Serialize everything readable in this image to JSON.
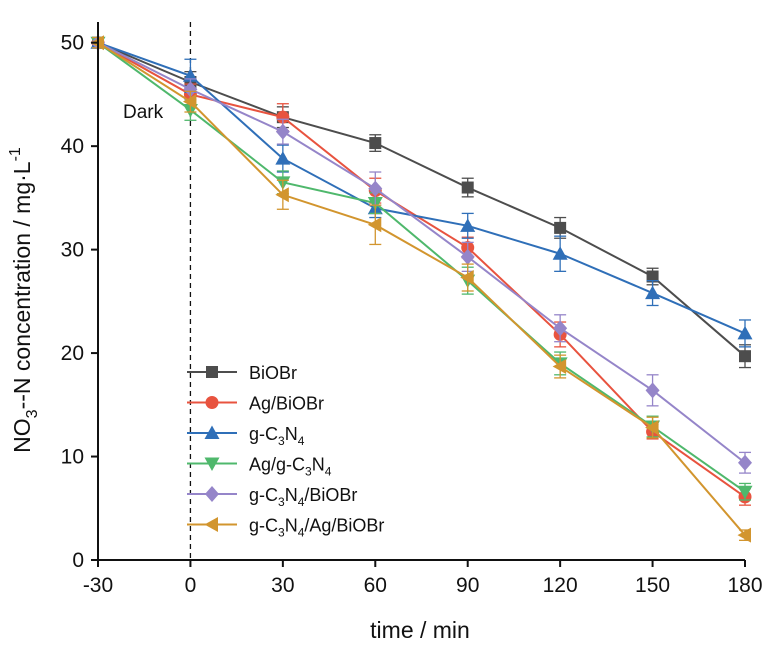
{
  "chart_data": {
    "type": "line",
    "xlabel": "time / min",
    "ylabel": "NO3--N concentration / mg·L-1",
    "xlim": [
      -30,
      180
    ],
    "ylim": [
      0,
      52
    ],
    "x_ticks": [
      -30,
      0,
      30,
      60,
      90,
      120,
      150,
      180
    ],
    "y_ticks": [
      0,
      10,
      20,
      30,
      40,
      50
    ],
    "x": [
      -30,
      0,
      30,
      60,
      90,
      120,
      150,
      180
    ],
    "annotation": {
      "text": "Dark",
      "at_x": 0
    },
    "legend_position": "bottom-left",
    "series": [
      {
        "name": "BiOBr",
        "color": "#4d4d4d",
        "marker": "square",
        "values": [
          50,
          46.2,
          42.8,
          40.3,
          36.0,
          32.1,
          27.4,
          19.7
        ],
        "errors": [
          0.5,
          1.0,
          1.0,
          0.8,
          0.9,
          1.0,
          0.8,
          1.1
        ]
      },
      {
        "name": "Ag/BiOBr",
        "color": "#e8533f",
        "marker": "circle",
        "values": [
          50,
          45.0,
          42.8,
          35.7,
          30.2,
          21.8,
          12.4,
          6.1
        ],
        "errors": [
          0.5,
          1.0,
          1.3,
          1.2,
          1.0,
          1.2,
          0.7,
          0.8
        ]
      },
      {
        "name": "g-C3N4",
        "color": "#2f6fb8",
        "marker": "triangle-up",
        "values": [
          50,
          46.8,
          38.8,
          34.0,
          32.3,
          29.6,
          25.8,
          21.9
        ],
        "errors": [
          0.5,
          1.6,
          1.3,
          0.9,
          1.2,
          1.7,
          1.2,
          1.3
        ]
      },
      {
        "name": "Ag/g-C3N4",
        "color": "#4fb86c",
        "marker": "triangle-down",
        "values": [
          50,
          43.5,
          36.5,
          34.5,
          27.0,
          19.0,
          12.9,
          6.6
        ],
        "errors": [
          0.5,
          1.0,
          1.1,
          1.0,
          1.3,
          1.1,
          1.0,
          0.8
        ]
      },
      {
        "name": "g-C3N4/BiOBr",
        "color": "#9585c9",
        "marker": "diamond",
        "values": [
          50,
          45.5,
          41.4,
          35.9,
          29.3,
          22.4,
          16.4,
          9.4
        ],
        "errors": [
          0.5,
          1.0,
          1.2,
          1.6,
          1.4,
          1.3,
          1.5,
          1.0
        ]
      },
      {
        "name": "g-C3N4/Ag/BiOBr",
        "color": "#d2952e",
        "marker": "triangle-left",
        "values": [
          50,
          44.3,
          35.3,
          32.4,
          27.3,
          18.7,
          12.8,
          2.4
        ],
        "errors": [
          0.5,
          1.0,
          1.4,
          1.9,
          1.3,
          1.1,
          1.0,
          0.5
        ]
      }
    ]
  }
}
